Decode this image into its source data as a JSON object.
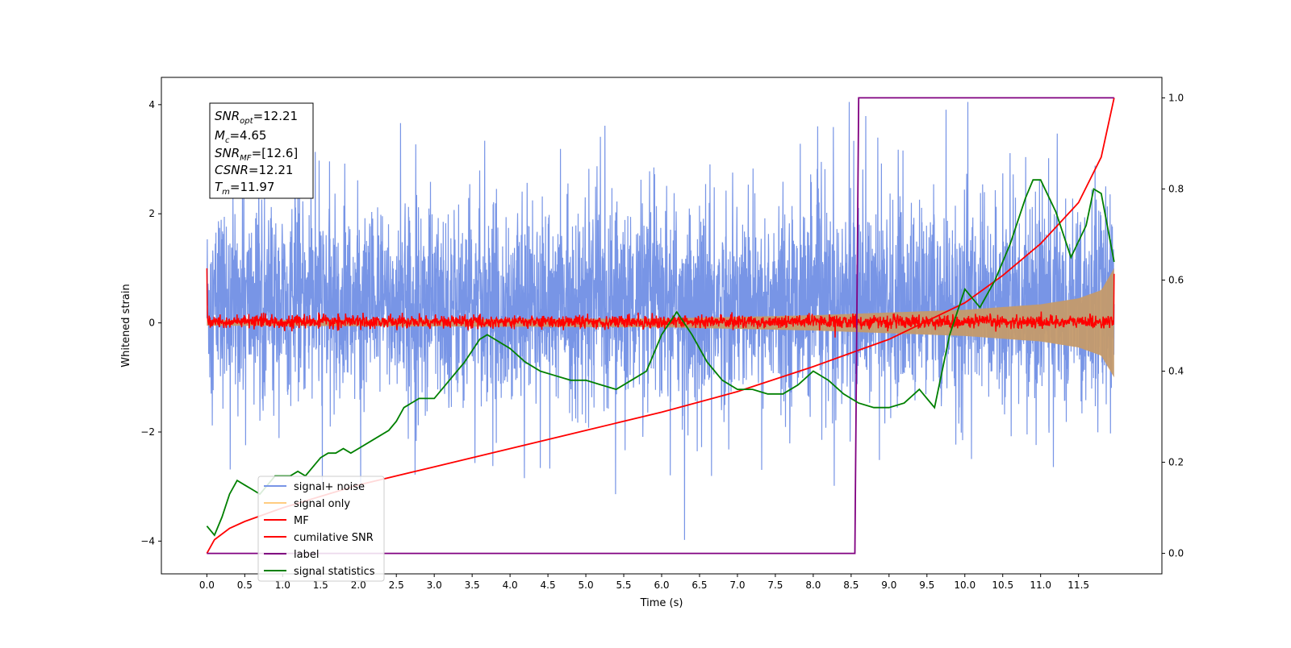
{
  "chart_data": {
    "type": "line",
    "xlabel": "Time (s)",
    "ylabel": "Whitened strain",
    "xlim": [
      -0.6,
      12.6
    ],
    "ylim": [
      -4.6,
      4.5
    ],
    "y2lim": [
      -0.045,
      1.045
    ],
    "xticks": [
      "0.0",
      "0.5",
      "1.0",
      "1.5",
      "2.0",
      "2.5",
      "3.0",
      "3.5",
      "4.0",
      "4.5",
      "5.0",
      "5.5",
      "6.0",
      "6.5",
      "7.0",
      "7.5",
      "8.0",
      "8.5",
      "9.0",
      "9.5",
      "10.0",
      "10.5",
      "11.0",
      "11.5"
    ],
    "yticks": [
      "4",
      "2",
      "0",
      "−2",
      "−4"
    ],
    "y2ticks": [
      "1.0",
      "0.8",
      "0.6",
      "0.4",
      "0.2",
      "0.0"
    ],
    "annotation": {
      "snr_opt": "12.21",
      "mc": "4.65",
      "snr_mf": "[12.6]",
      "csnr": "12.21",
      "tm": "11.97"
    },
    "legend_position": "lower-left",
    "legend": [
      {
        "label": "signal+ noise",
        "color": "#7895e6"
      },
      {
        "label": "signal only",
        "color": "#ffcc80"
      },
      {
        "label": "MF",
        "color": "#ff0000"
      },
      {
        "label": "cumilative SNR",
        "color": "#ff0000"
      },
      {
        "label": "label",
        "color": "#800080"
      },
      {
        "label": "signal statistics",
        "color": "#008000"
      }
    ],
    "series": [
      {
        "name": "signal+ noise",
        "axis": "left",
        "color": "#7895e6",
        "description": "dense noise band roughly between -2.5 and 3, x from 0 to 12"
      },
      {
        "name": "signal only",
        "axis": "left",
        "color": "#c49a6c",
        "envelope": [
          [
            0,
            0.05
          ],
          [
            6,
            0.08
          ],
          [
            8,
            0.14
          ],
          [
            10,
            0.24
          ],
          [
            11,
            0.34
          ],
          [
            11.5,
            0.45
          ],
          [
            11.8,
            0.6
          ],
          [
            11.97,
            1.0
          ]
        ]
      },
      {
        "name": "MF",
        "axis": "left",
        "color": "#ff0000",
        "description": "noise around 0 with amplitude about 0.15"
      },
      {
        "name": "cumilative SNR",
        "axis": "right",
        "color": "#ff0000",
        "x": [
          0,
          0.1,
          0.3,
          0.5,
          1,
          1.5,
          2,
          3,
          4,
          5,
          6,
          7,
          8,
          8.5,
          9,
          9.5,
          10,
          10.5,
          11,
          11.5,
          11.8,
          11.97
        ],
        "y": [
          0.0,
          0.03,
          0.055,
          0.07,
          0.1,
          0.125,
          0.15,
          0.19,
          0.23,
          0.27,
          0.31,
          0.355,
          0.41,
          0.44,
          0.47,
          0.51,
          0.55,
          0.61,
          0.68,
          0.77,
          0.87,
          1.0
        ]
      },
      {
        "name": "label",
        "axis": "right",
        "color": "#800080",
        "x": [
          0,
          8.55,
          8.6,
          11.97
        ],
        "y": [
          0,
          0,
          1,
          1
        ]
      },
      {
        "name": "signal statistics",
        "axis": "right",
        "color": "#008000",
        "x": [
          0,
          0.1,
          0.2,
          0.3,
          0.4,
          0.5,
          0.6,
          0.7,
          0.8,
          0.9,
          1.0,
          1.1,
          1.2,
          1.3,
          1.4,
          1.5,
          1.6,
          1.7,
          1.8,
          1.9,
          2.0,
          2.2,
          2.4,
          2.5,
          2.6,
          2.8,
          3.0,
          3.2,
          3.4,
          3.6,
          3.7,
          3.8,
          4.0,
          4.2,
          4.4,
          4.6,
          4.8,
          5.0,
          5.2,
          5.4,
          5.6,
          5.8,
          6.0,
          6.2,
          6.4,
          6.6,
          6.8,
          7.0,
          7.2,
          7.4,
          7.6,
          7.8,
          8.0,
          8.2,
          8.4,
          8.6,
          8.8,
          9.0,
          9.2,
          9.4,
          9.6,
          9.8,
          10.0,
          10.2,
          10.4,
          10.6,
          10.8,
          10.9,
          11.0,
          11.2,
          11.4,
          11.6,
          11.7,
          11.8,
          11.97
        ],
        "y": [
          0.06,
          0.04,
          0.08,
          0.13,
          0.16,
          0.15,
          0.14,
          0.13,
          0.15,
          0.17,
          0.17,
          0.17,
          0.18,
          0.17,
          0.19,
          0.21,
          0.22,
          0.22,
          0.23,
          0.22,
          0.23,
          0.25,
          0.27,
          0.29,
          0.32,
          0.34,
          0.34,
          0.38,
          0.42,
          0.47,
          0.48,
          0.47,
          0.45,
          0.42,
          0.4,
          0.39,
          0.38,
          0.38,
          0.37,
          0.36,
          0.38,
          0.4,
          0.48,
          0.53,
          0.48,
          0.42,
          0.38,
          0.36,
          0.36,
          0.35,
          0.35,
          0.37,
          0.4,
          0.38,
          0.35,
          0.33,
          0.32,
          0.32,
          0.33,
          0.36,
          0.32,
          0.48,
          0.58,
          0.54,
          0.6,
          0.68,
          0.78,
          0.82,
          0.82,
          0.75,
          0.65,
          0.72,
          0.8,
          0.79,
          0.64
        ]
      }
    ]
  }
}
